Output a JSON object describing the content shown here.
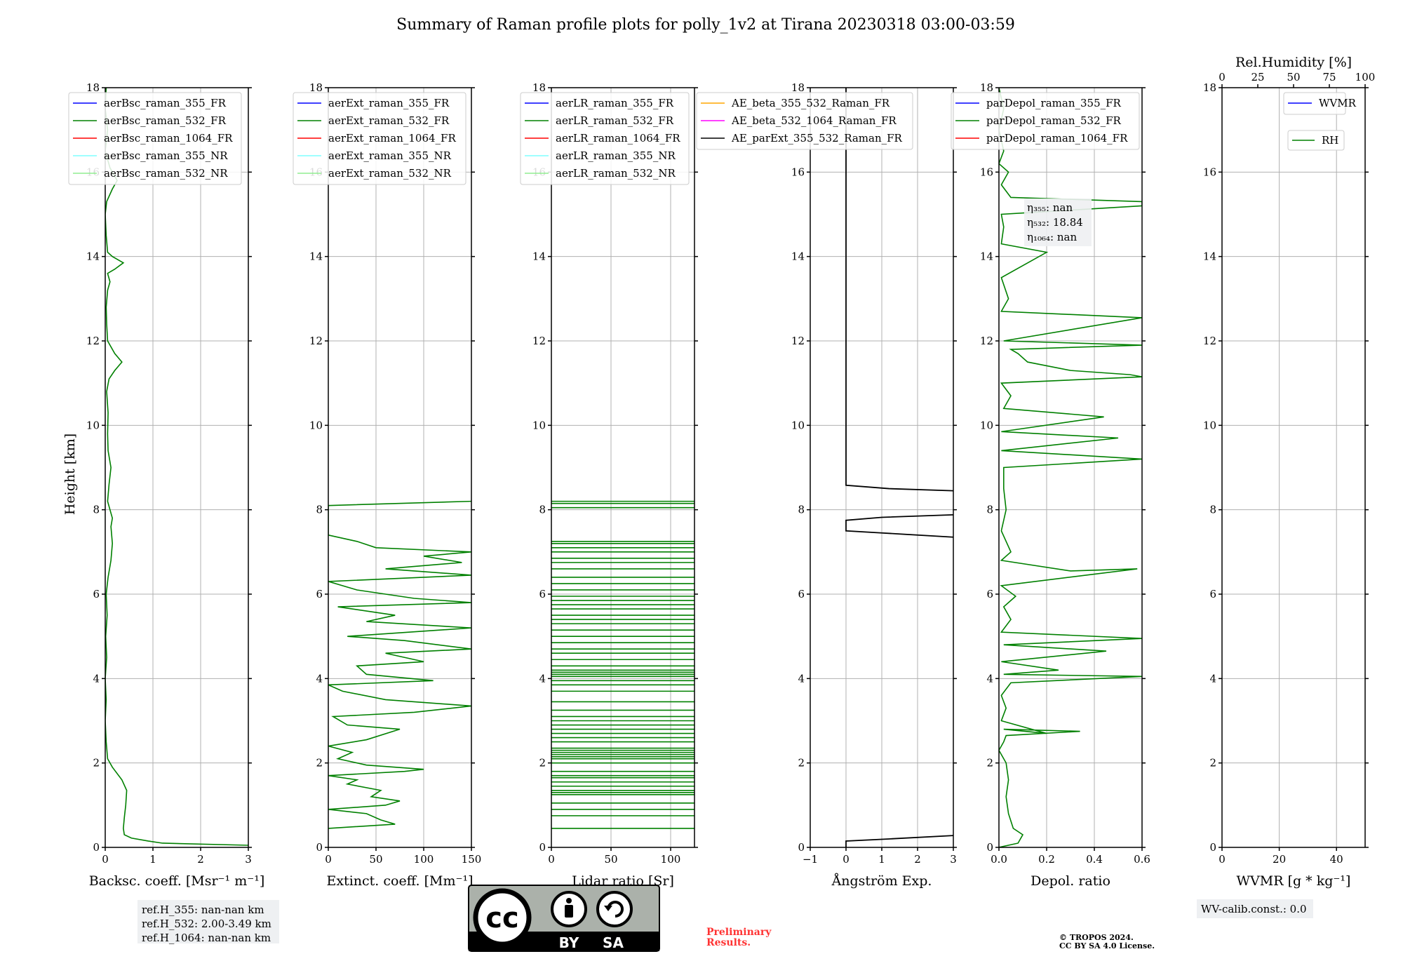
{
  "title": "Summary of Raman profile plots for polly_1v2 at Tirana 20230318 03:00-03:59",
  "y_label": "Height [km]",
  "y_ticks": [
    "0",
    "2",
    "4",
    "6",
    "8",
    "10",
    "12",
    "14",
    "16",
    "18"
  ],
  "colors": {
    "blue": "#0000ff",
    "green": "#008000",
    "red": "#ff0000",
    "cyan": "#7fffff",
    "lightgreen": "#90ee90",
    "orange": "#ffa500",
    "magenta": "#ff00ff",
    "black": "#000000",
    "grid": "#b0b0b0",
    "box": "#eef0f2",
    "prelim": "#ff3333"
  },
  "chart_data": [
    {
      "type": "line",
      "xlabel": "Backsc. coeff. [Msr⁻¹ m⁻¹]",
      "xlim": [
        0,
        3
      ],
      "ylim": [
        0,
        18
      ],
      "x_ticks": [
        "0",
        "1",
        "2",
        "3"
      ],
      "legend": [
        "aerBsc_raman_355_FR",
        "aerBsc_raman_532_FR",
        "aerBsc_raman_1064_FR",
        "aerBsc_raman_355_NR",
        "aerBsc_raman_532_NR"
      ],
      "series": [
        {
          "name": "aerBsc_raman_532_FR",
          "color": "green",
          "points": [
            [
              3.0,
              0.05
            ],
            [
              1.2,
              0.1
            ],
            [
              0.9,
              0.15
            ],
            [
              0.55,
              0.22
            ],
            [
              0.4,
              0.3
            ],
            [
              0.38,
              0.45
            ],
            [
              0.4,
              0.7
            ],
            [
              0.43,
              1.0
            ],
            [
              0.45,
              1.35
            ],
            [
              0.35,
              1.6
            ],
            [
              0.15,
              1.9
            ],
            [
              0.05,
              2.1
            ],
            [
              0.02,
              2.5
            ],
            [
              0.0,
              3.0
            ],
            [
              0.02,
              3.5
            ],
            [
              0.0,
              4.0
            ],
            [
              0.03,
              4.5
            ],
            [
              0.01,
              5.0
            ],
            [
              0.04,
              5.5
            ],
            [
              0.02,
              6.0
            ],
            [
              0.06,
              6.4
            ],
            [
              0.12,
              6.8
            ],
            [
              0.15,
              7.2
            ],
            [
              0.12,
              7.6
            ],
            [
              0.15,
              7.8
            ],
            [
              0.1,
              8.0
            ],
            [
              0.05,
              8.2
            ],
            [
              0.08,
              8.6
            ],
            [
              0.12,
              9.0
            ],
            [
              0.06,
              9.4
            ],
            [
              0.05,
              9.8
            ],
            [
              0.06,
              10.3
            ],
            [
              0.03,
              10.8
            ],
            [
              0.08,
              11.1
            ],
            [
              0.2,
              11.3
            ],
            [
              0.35,
              11.5
            ],
            [
              0.2,
              11.7
            ],
            [
              0.05,
              12.0
            ],
            [
              0.03,
              12.4
            ],
            [
              0.02,
              12.8
            ],
            [
              0.05,
              13.2
            ],
            [
              0.1,
              13.4
            ],
            [
              0.05,
              13.6
            ],
            [
              0.2,
              13.7
            ],
            [
              0.38,
              13.85
            ],
            [
              0.15,
              14.0
            ],
            [
              0.05,
              14.1
            ],
            [
              0.02,
              14.5
            ],
            [
              0.0,
              15.0
            ],
            [
              0.03,
              15.3
            ],
            [
              0.15,
              15.6
            ],
            [
              0.25,
              15.8
            ],
            [
              0.1,
              16.1
            ],
            [
              0.0,
              16.5
            ],
            [
              0.05,
              17.0
            ],
            [
              0.0,
              17.5
            ],
            [
              0.02,
              18.0
            ]
          ]
        }
      ]
    },
    {
      "type": "line",
      "xlabel": "Extinct. coeff. [Mm⁻¹]",
      "xlim": [
        0,
        150
      ],
      "ylim": [
        0,
        18
      ],
      "x_ticks": [
        "0",
        "50",
        "100",
        "150"
      ],
      "legend": [
        "aerExt_raman_355_FR",
        "aerExt_raman_532_FR",
        "aerExt_raman_1064_FR",
        "aerExt_raman_355_NR",
        "aerExt_raman_532_NR"
      ],
      "series": [
        {
          "name": "aerExt_raman_532_FR",
          "color": "green",
          "points": [
            [
              0,
              0.45
            ],
            [
              70,
              0.55
            ],
            [
              55,
              0.65
            ],
            [
              40,
              0.8
            ],
            [
              0,
              0.9
            ],
            [
              60,
              1.0
            ],
            [
              75,
              1.1
            ],
            [
              45,
              1.2
            ],
            [
              55,
              1.35
            ],
            [
              20,
              1.5
            ],
            [
              30,
              1.6
            ],
            [
              0,
              1.7
            ],
            [
              80,
              1.8
            ],
            [
              100,
              1.85
            ],
            [
              40,
              1.95
            ],
            [
              10,
              2.1
            ],
            [
              25,
              2.25
            ],
            [
              0,
              2.4
            ],
            [
              40,
              2.55
            ],
            [
              75,
              2.8
            ],
            [
              20,
              2.9
            ],
            [
              5,
              3.1
            ],
            [
              90,
              3.2
            ],
            [
              150,
              3.35
            ],
            [
              60,
              3.5
            ],
            [
              15,
              3.7
            ],
            [
              0,
              3.85
            ],
            [
              110,
              3.95
            ],
            [
              40,
              4.1
            ],
            [
              30,
              4.3
            ],
            [
              100,
              4.4
            ],
            [
              60,
              4.6
            ],
            [
              150,
              4.7
            ],
            [
              80,
              4.9
            ],
            [
              20,
              5.0
            ],
            [
              150,
              5.2
            ],
            [
              40,
              5.35
            ],
            [
              70,
              5.5
            ],
            [
              10,
              5.7
            ],
            [
              150,
              5.8
            ],
            [
              90,
              5.9
            ],
            [
              30,
              6.1
            ],
            [
              0,
              6.3
            ],
            [
              150,
              6.45
            ],
            [
              60,
              6.6
            ],
            [
              140,
              6.75
            ],
            [
              100,
              6.9
            ],
            [
              150,
              7.0
            ],
            [
              50,
              7.1
            ],
            [
              30,
              7.25
            ],
            [
              0,
              7.4
            ],
            [
              0,
              8.1
            ],
            [
              150,
              8.2
            ]
          ]
        }
      ]
    },
    {
      "type": "line",
      "xlabel": "Lidar ratio [Sr]",
      "xlim": [
        0,
        120
      ],
      "ylim": [
        0,
        18
      ],
      "x_ticks": [
        "0",
        "50",
        "100"
      ],
      "legend": [
        "aerLR_raman_355_FR",
        "aerLR_raman_532_FR",
        "aerLR_raman_1064_FR",
        "aerLR_raman_355_NR",
        "aerLR_raman_532_NR"
      ],
      "series": [
        {
          "name": "aerLR_raman_532_FR",
          "color": "green",
          "hlines": [
            0.45,
            0.75,
            0.9,
            1.05,
            1.25,
            1.3,
            1.35,
            1.45,
            1.55,
            1.65,
            1.7,
            1.8,
            2.0,
            2.1,
            2.15,
            2.2,
            2.25,
            2.3,
            2.35,
            2.5,
            2.6,
            2.7,
            2.8,
            2.9,
            3.0,
            3.1,
            3.25,
            3.45,
            3.7,
            3.85,
            3.95,
            4.05,
            4.1,
            4.15,
            4.2,
            4.3,
            4.45,
            4.6,
            4.7,
            4.85,
            5.0,
            5.15,
            5.3,
            5.4,
            5.5,
            5.65,
            5.75,
            5.85,
            5.95,
            6.1,
            6.25,
            6.4,
            6.6,
            6.75,
            6.85,
            7.0,
            7.1,
            7.2,
            7.25,
            8.05,
            8.15,
            8.2
          ]
        }
      ]
    },
    {
      "type": "line",
      "xlabel": "Ångström Exp.",
      "xlim": [
        -1,
        3
      ],
      "ylim": [
        0,
        18
      ],
      "x_ticks": [
        "−1",
        "0",
        "1",
        "2",
        "3"
      ],
      "legend": [
        "AE_beta_355_532_Raman_FR",
        "AE_beta_532_1064_Raman_FR",
        "AE_parExt_355_532_Raman_FR"
      ],
      "series": [
        {
          "name": "AE_parExt_355_532_Raman_FR",
          "color": "black",
          "segments": [
            [
              [
                0,
                0.0
              ],
              [
                0,
                0.15
              ],
              [
                1.2,
                0.2
              ],
              [
                3.0,
                0.28
              ]
            ],
            [
              [
                3.0,
                7.35
              ],
              [
                1.0,
                7.45
              ],
              [
                0,
                7.5
              ],
              [
                0,
                7.75
              ],
              [
                1.0,
                7.82
              ],
              [
                3.0,
                7.88
              ]
            ],
            [
              [
                3.0,
                8.45
              ],
              [
                1.2,
                8.5
              ],
              [
                0,
                8.58
              ],
              [
                0,
                18.0
              ]
            ]
          ]
        }
      ]
    },
    {
      "type": "line",
      "xlabel": "Depol. ratio",
      "xlim": [
        0,
        0.6
      ],
      "ylim": [
        0,
        18
      ],
      "x_ticks": [
        "0.0",
        "0.2",
        "0.4",
        "0.6"
      ],
      "legend": [
        "parDepol_raman_355_FR",
        "parDepol_raman_532_FR",
        "parDepol_raman_1064_FR"
      ],
      "annotation": [
        "η₃₅₅: nan",
        "η₅₃₂: 18.84",
        "η₁₀₆₄: nan"
      ],
      "series": [
        {
          "name": "parDepol_raman_532_FR",
          "color": "green",
          "points": [
            [
              0.0,
              0.0
            ],
            [
              0.08,
              0.1
            ],
            [
              0.1,
              0.3
            ],
            [
              0.06,
              0.45
            ],
            [
              0.04,
              0.8
            ],
            [
              0.03,
              1.2
            ],
            [
              0.04,
              1.6
            ],
            [
              0.03,
              2.0
            ],
            [
              0.0,
              2.3
            ],
            [
              0.02,
              2.5
            ],
            [
              0.03,
              2.65
            ],
            [
              0.34,
              2.75
            ],
            [
              0.02,
              2.8
            ],
            [
              0.2,
              2.7
            ],
            [
              0.01,
              3.0
            ],
            [
              0.03,
              3.3
            ],
            [
              0.01,
              3.6
            ],
            [
              0.05,
              3.9
            ],
            [
              0.6,
              4.05
            ],
            [
              0.02,
              4.1
            ],
            [
              0.25,
              4.2
            ],
            [
              0.01,
              4.4
            ],
            [
              0.45,
              4.65
            ],
            [
              0.02,
              4.8
            ],
            [
              0.6,
              4.95
            ],
            [
              0.01,
              5.1
            ],
            [
              0.05,
              5.4
            ],
            [
              0.02,
              5.7
            ],
            [
              0.07,
              5.95
            ],
            [
              0.01,
              6.2
            ],
            [
              0.58,
              6.6
            ],
            [
              0.3,
              6.55
            ],
            [
              0.01,
              6.8
            ],
            [
              0.05,
              7.0
            ],
            [
              0.01,
              7.5
            ],
            [
              0.03,
              8.0
            ],
            [
              0.02,
              8.5
            ],
            [
              0.02,
              9.0
            ],
            [
              0.6,
              9.2
            ],
            [
              0.01,
              9.4
            ],
            [
              0.5,
              9.7
            ],
            [
              0.01,
              9.85
            ],
            [
              0.44,
              10.2
            ],
            [
              0.02,
              10.4
            ],
            [
              0.05,
              10.7
            ],
            [
              0.01,
              11.0
            ],
            [
              0.6,
              11.15
            ],
            [
              0.55,
              11.2
            ],
            [
              0.3,
              11.3
            ],
            [
              0.12,
              11.5
            ],
            [
              0.08,
              11.7
            ],
            [
              0.05,
              11.8
            ],
            [
              0.6,
              11.9
            ],
            [
              0.02,
              12.0
            ],
            [
              0.6,
              12.55
            ],
            [
              0.01,
              12.7
            ],
            [
              0.04,
              13.0
            ],
            [
              0.01,
              13.5
            ],
            [
              0.2,
              14.1
            ],
            [
              0.01,
              14.3
            ],
            [
              0.02,
              14.7
            ],
            [
              0.01,
              15.0
            ],
            [
              0.6,
              15.2
            ],
            [
              0.6,
              15.3
            ],
            [
              0.05,
              15.4
            ],
            [
              0.01,
              15.7
            ],
            [
              0.04,
              16.0
            ],
            [
              0.0,
              16.2
            ],
            [
              0.02,
              16.5
            ],
            [
              0.0,
              17.0
            ],
            [
              0.02,
              17.5
            ],
            [
              0.0,
              18.0
            ]
          ]
        }
      ]
    },
    {
      "type": "line",
      "xlabel": "WVMR [g * kg⁻¹]",
      "x2label": "Rel.Humidity [%]",
      "xlim": [
        0,
        50
      ],
      "ylim": [
        0,
        18
      ],
      "x_ticks": [
        "0",
        "20",
        "40"
      ],
      "x2_ticks": [
        "0",
        "25",
        "50",
        "75",
        "100"
      ],
      "legend": [
        "WVMR"
      ],
      "legend2": [
        "RH"
      ],
      "series": []
    }
  ],
  "footer": {
    "ref_lines": [
      "ref.H_355: nan-nan km",
      "ref.H_532: 2.00-3.49 km",
      "ref.H_1064: nan-nan km"
    ],
    "license_logo_text": [
      "cc",
      "BY",
      "SA"
    ],
    "prelim_lines": [
      "Preliminary",
      "Results."
    ],
    "copyright_lines": [
      "© TROPOS 2024.",
      "CC BY SA 4.0 License."
    ],
    "wv_calib": "WV-calib.const.: 0.0"
  }
}
